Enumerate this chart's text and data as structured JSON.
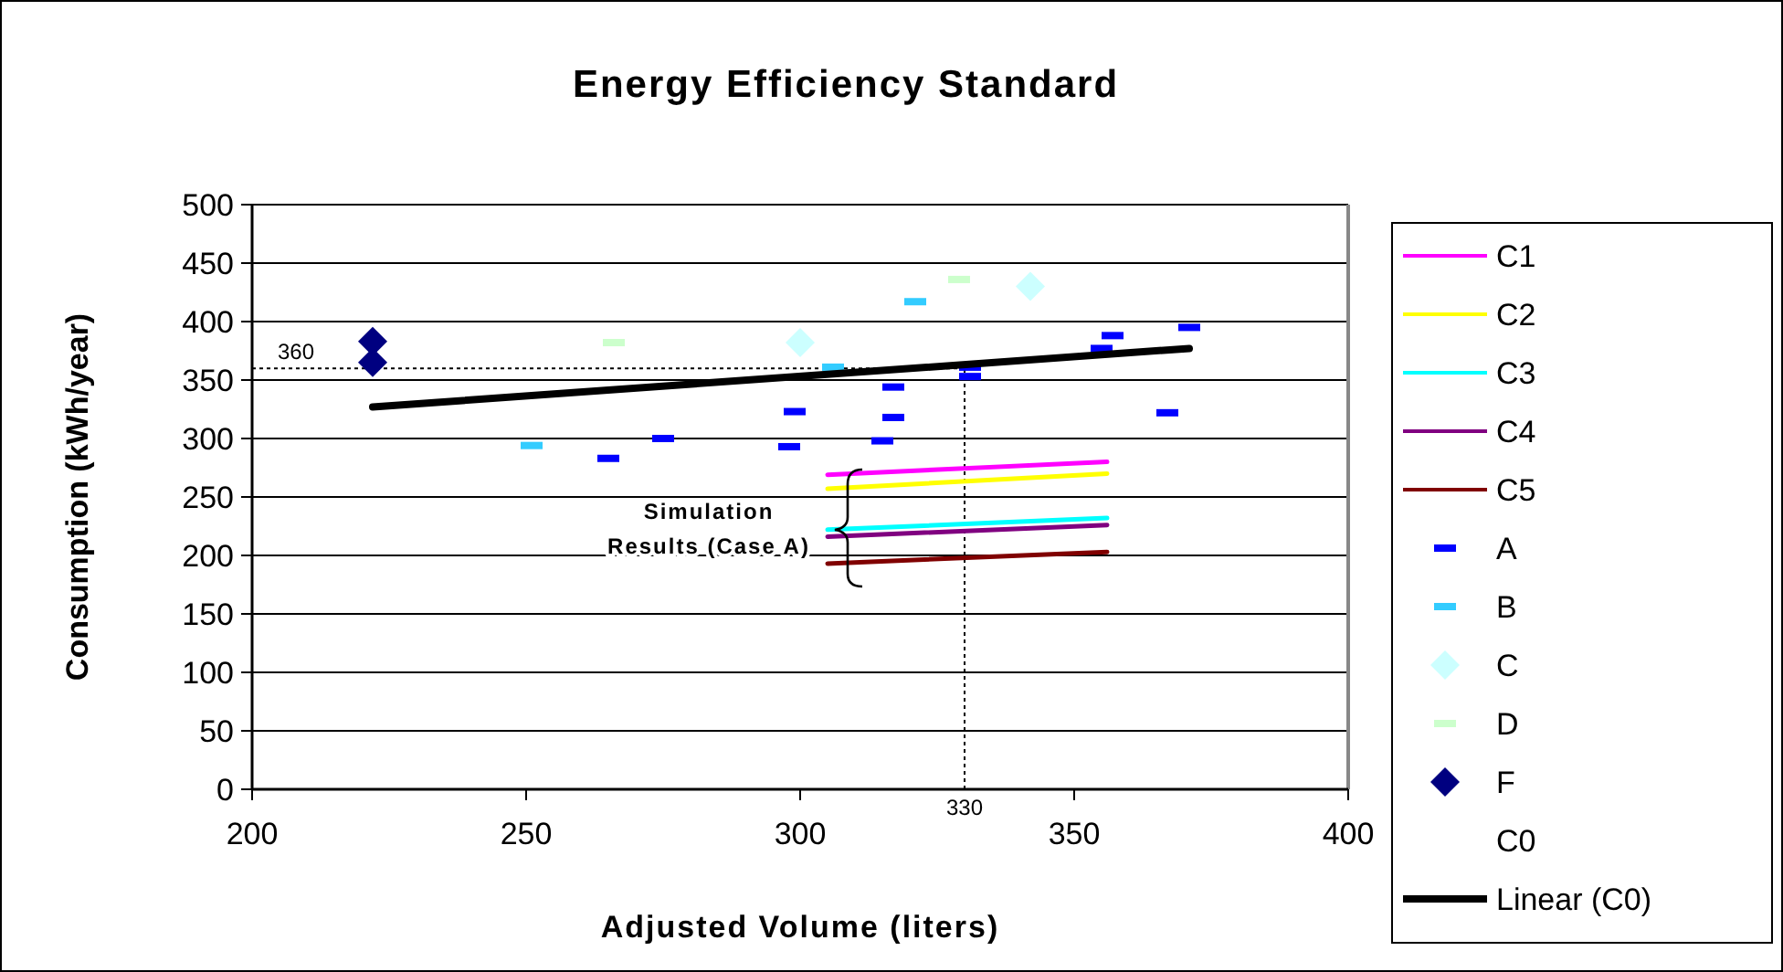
{
  "chart_data": {
    "type": "scatter",
    "title": "Energy Efficiency Standard",
    "xlabel": "Adjusted Volume (liters)",
    "ylabel": "Consumption (kWh/year)",
    "xlim": [
      200,
      400
    ],
    "xticks": [
      200,
      250,
      300,
      350,
      400
    ],
    "ylim": [
      0,
      500
    ],
    "yticks": [
      0,
      50,
      100,
      150,
      200,
      250,
      300,
      350,
      400,
      450,
      500
    ],
    "grid": "y",
    "legend": "right",
    "series": [
      {
        "name": "C1",
        "type": "line",
        "color": "#ff00ff",
        "marker": "none",
        "x": [
          305,
          356
        ],
        "values": [
          269,
          280
        ]
      },
      {
        "name": "C2",
        "type": "line",
        "color": "#ffff00",
        "marker": "none",
        "x": [
          305,
          356
        ],
        "values": [
          257,
          270
        ]
      },
      {
        "name": "C3",
        "type": "line",
        "color": "#00ffff",
        "marker": "none",
        "x": [
          305,
          356
        ],
        "values": [
          222,
          232
        ]
      },
      {
        "name": "C4",
        "type": "line",
        "color": "#800080",
        "marker": "none",
        "x": [
          305,
          356
        ],
        "values": [
          216,
          226
        ]
      },
      {
        "name": "C5",
        "type": "line",
        "color": "#800000",
        "marker": "none",
        "x": [
          305,
          356
        ],
        "values": [
          193,
          203
        ]
      },
      {
        "name": "A",
        "type": "scatter",
        "color": "#0000ff",
        "marker": "square",
        "x": [
          265,
          275,
          298,
          299,
          317,
          317,
          315,
          331,
          331,
          357,
          355,
          371,
          367
        ],
        "values": [
          283,
          300,
          293,
          323,
          344,
          318,
          298,
          361,
          353,
          388,
          377,
          395,
          322
        ]
      },
      {
        "name": "B",
        "type": "scatter",
        "color": "#33ccff",
        "marker": "square",
        "x": [
          251,
          306,
          321
        ],
        "values": [
          294,
          361,
          417
        ]
      },
      {
        "name": "C",
        "type": "scatter",
        "color": "#ccffff",
        "marker": "diamond",
        "x": [
          300,
          342
        ],
        "values": [
          382,
          430
        ]
      },
      {
        "name": "D",
        "type": "scatter",
        "color": "#ccffcc",
        "marker": "square",
        "x": [
          266,
          329
        ],
        "values": [
          382,
          436
        ]
      },
      {
        "name": "F",
        "type": "scatter",
        "color": "#000080",
        "marker": "diamond",
        "x": [
          222,
          222
        ],
        "values": [
          383,
          365
        ]
      },
      {
        "name": "C0",
        "type": "scatter",
        "color": "#000000",
        "marker": "none"
      },
      {
        "name": "Linear (C0)",
        "type": "line",
        "color": "#000000",
        "marker": "none",
        "x": [
          222,
          371
        ],
        "values": [
          327,
          377
        ]
      }
    ],
    "ref_lines": [
      {
        "axis": "y",
        "value": 360,
        "label": "360",
        "line_style": "dotted"
      },
      {
        "axis": "x",
        "value": 330,
        "label": "330",
        "line_style": "dotted"
      }
    ],
    "annotations": [
      "Simulation Results (Case A)"
    ]
  }
}
